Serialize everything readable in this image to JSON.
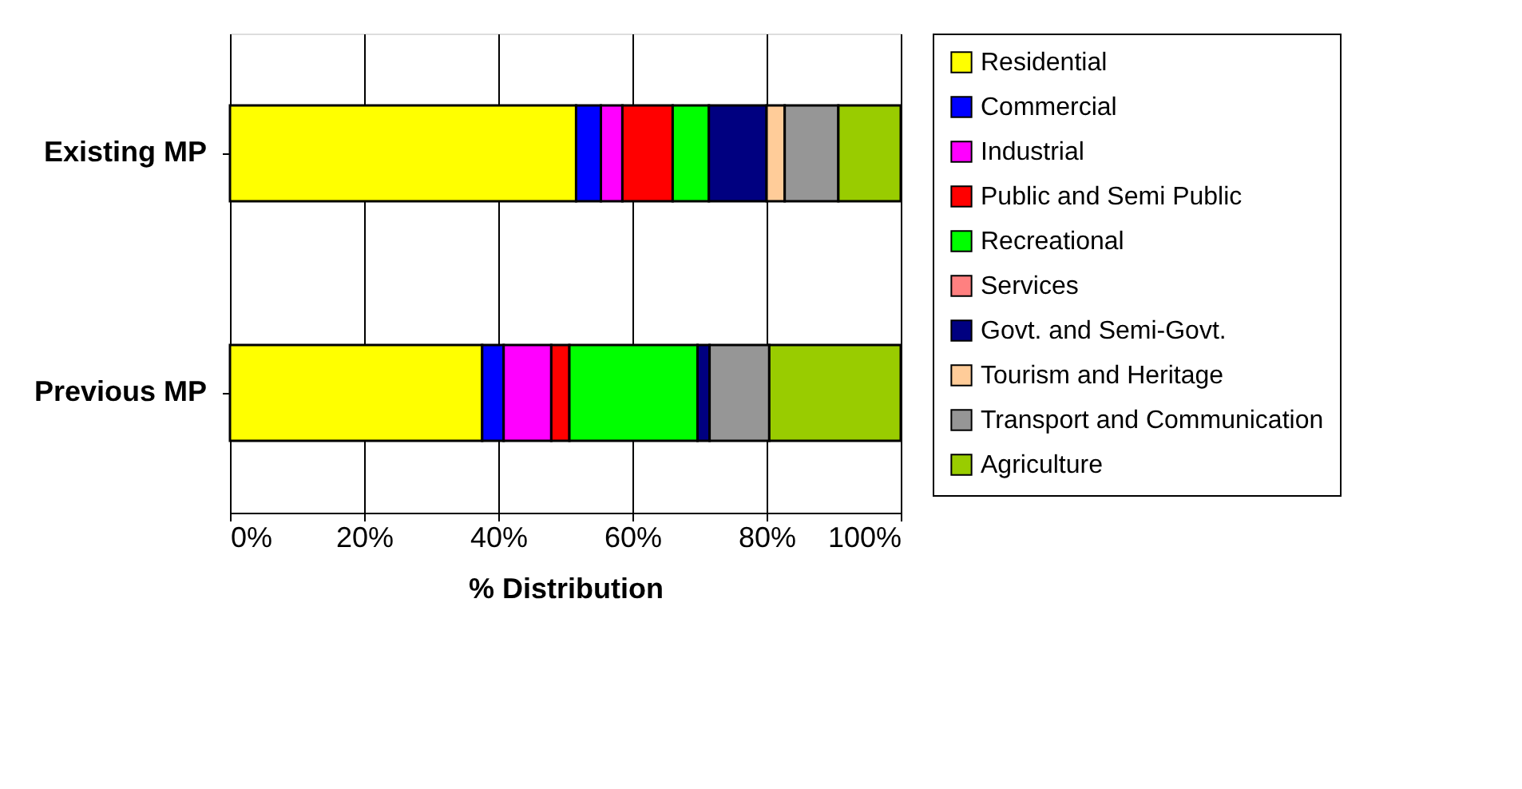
{
  "chart_data": {
    "type": "bar",
    "orientation": "horizontal",
    "stacked": true,
    "xlabel": "% Distribution",
    "categories": [
      "Existing MP",
      "Previous MP"
    ],
    "series": [
      {
        "name": "Residential",
        "color": "#ffff00",
        "values": [
          51.6,
          37.6
        ]
      },
      {
        "name": "Commercial",
        "color": "#0000ff",
        "values": [
          3.7,
          3.2
        ]
      },
      {
        "name": "Industrial",
        "color": "#ff00ff",
        "values": [
          3.2,
          7.1
        ]
      },
      {
        "name": "Public and Semi Public",
        "color": "#ff0000",
        "values": [
          7.5,
          2.7
        ]
      },
      {
        "name": "Recreational",
        "color": "#00ff00",
        "values": [
          5.4,
          19.1
        ]
      },
      {
        "name": "Services",
        "color": "#ff8080",
        "values": [
          0,
          0
        ]
      },
      {
        "name": "Govt. and Semi-Govt.",
        "color": "#000080",
        "values": [
          8.6,
          1.8
        ]
      },
      {
        "name": "Tourism and Heritage",
        "color": "#ffcc99",
        "values": [
          2.7,
          0
        ]
      },
      {
        "name": "Transport and Communication",
        "color": "#969696",
        "values": [
          8.0,
          8.9
        ]
      },
      {
        "name": "Agriculture",
        "color": "#99cc00",
        "values": [
          9.3,
          19.6
        ]
      }
    ],
    "xlim": [
      0,
      100
    ],
    "xticks": [
      {
        "value": 0,
        "label": "0%"
      },
      {
        "value": 20,
        "label": "20%"
      },
      {
        "value": 40,
        "label": "40%"
      },
      {
        "value": 60,
        "label": "60%"
      },
      {
        "value": 80,
        "label": "80%"
      },
      {
        "value": 100,
        "label": "100%"
      }
    ],
    "grid": "x",
    "legend": "right"
  }
}
